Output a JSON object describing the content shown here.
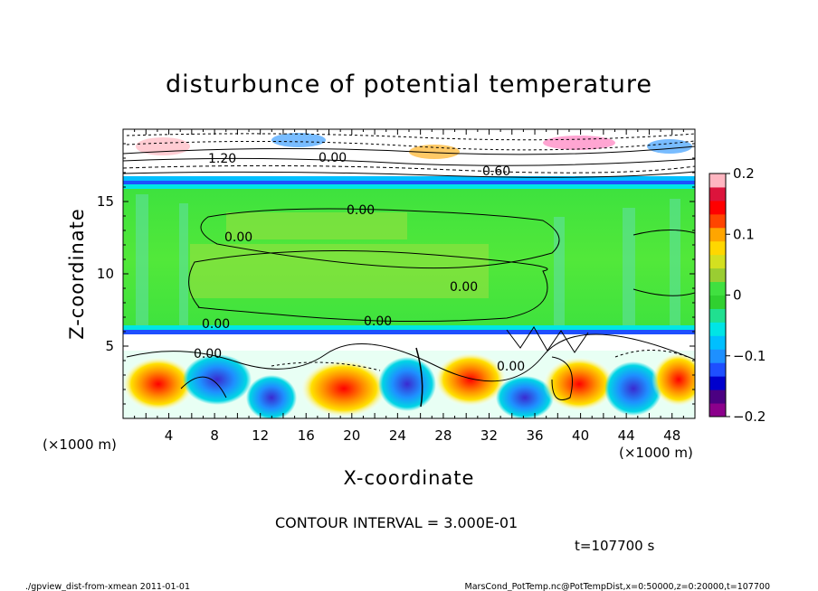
{
  "chart_data": {
    "type": "heatmap",
    "title": "disturbunce of potential temperature",
    "xlabel": "X-coordinate",
    "ylabel": "Z-coordinate",
    "x_unit": "(×1000 m)",
    "y_unit": "(×1000 m)",
    "xlim": [
      0,
      50
    ],
    "ylim": [
      0,
      20
    ],
    "xticks": [
      4,
      8,
      12,
      16,
      20,
      24,
      28,
      32,
      36,
      40,
      44,
      48
    ],
    "yticks": [
      5,
      10,
      15
    ],
    "colorbar": {
      "min": -0.2,
      "max": 0.2,
      "ticks": [
        "0.2",
        "0.1",
        "0",
        "−0.1",
        "−0.2"
      ],
      "colors": [
        "#8b008b",
        "#4b0082",
        "#0000cd",
        "#1e4fff",
        "#1e90ff",
        "#00bfff",
        "#00e5e5",
        "#20e090",
        "#30d030",
        "#40e040",
        "#9acd32",
        "#d4e020",
        "#ffd700",
        "#ffa500",
        "#ff4500",
        "#ff0000",
        "#dc143c",
        "#ffb6c1"
      ]
    },
    "contour_labels": [
      "1.20",
      "0.00",
      "0.60",
      "0.00",
      "0.00",
      "0.00",
      "0.00",
      "0.00",
      "0.00",
      "0.00"
    ],
    "contour_interval": "CONTOUR INTERVAL = 3.000E-01",
    "time_label": "t=107700 s"
  },
  "footer": {
    "left": "./gpview_dist-from-xmean  2011-01-01",
    "right": "MarsCond_PotTemp.nc@PotTempDist,x=0:50000,z=0:20000,t=107700"
  }
}
